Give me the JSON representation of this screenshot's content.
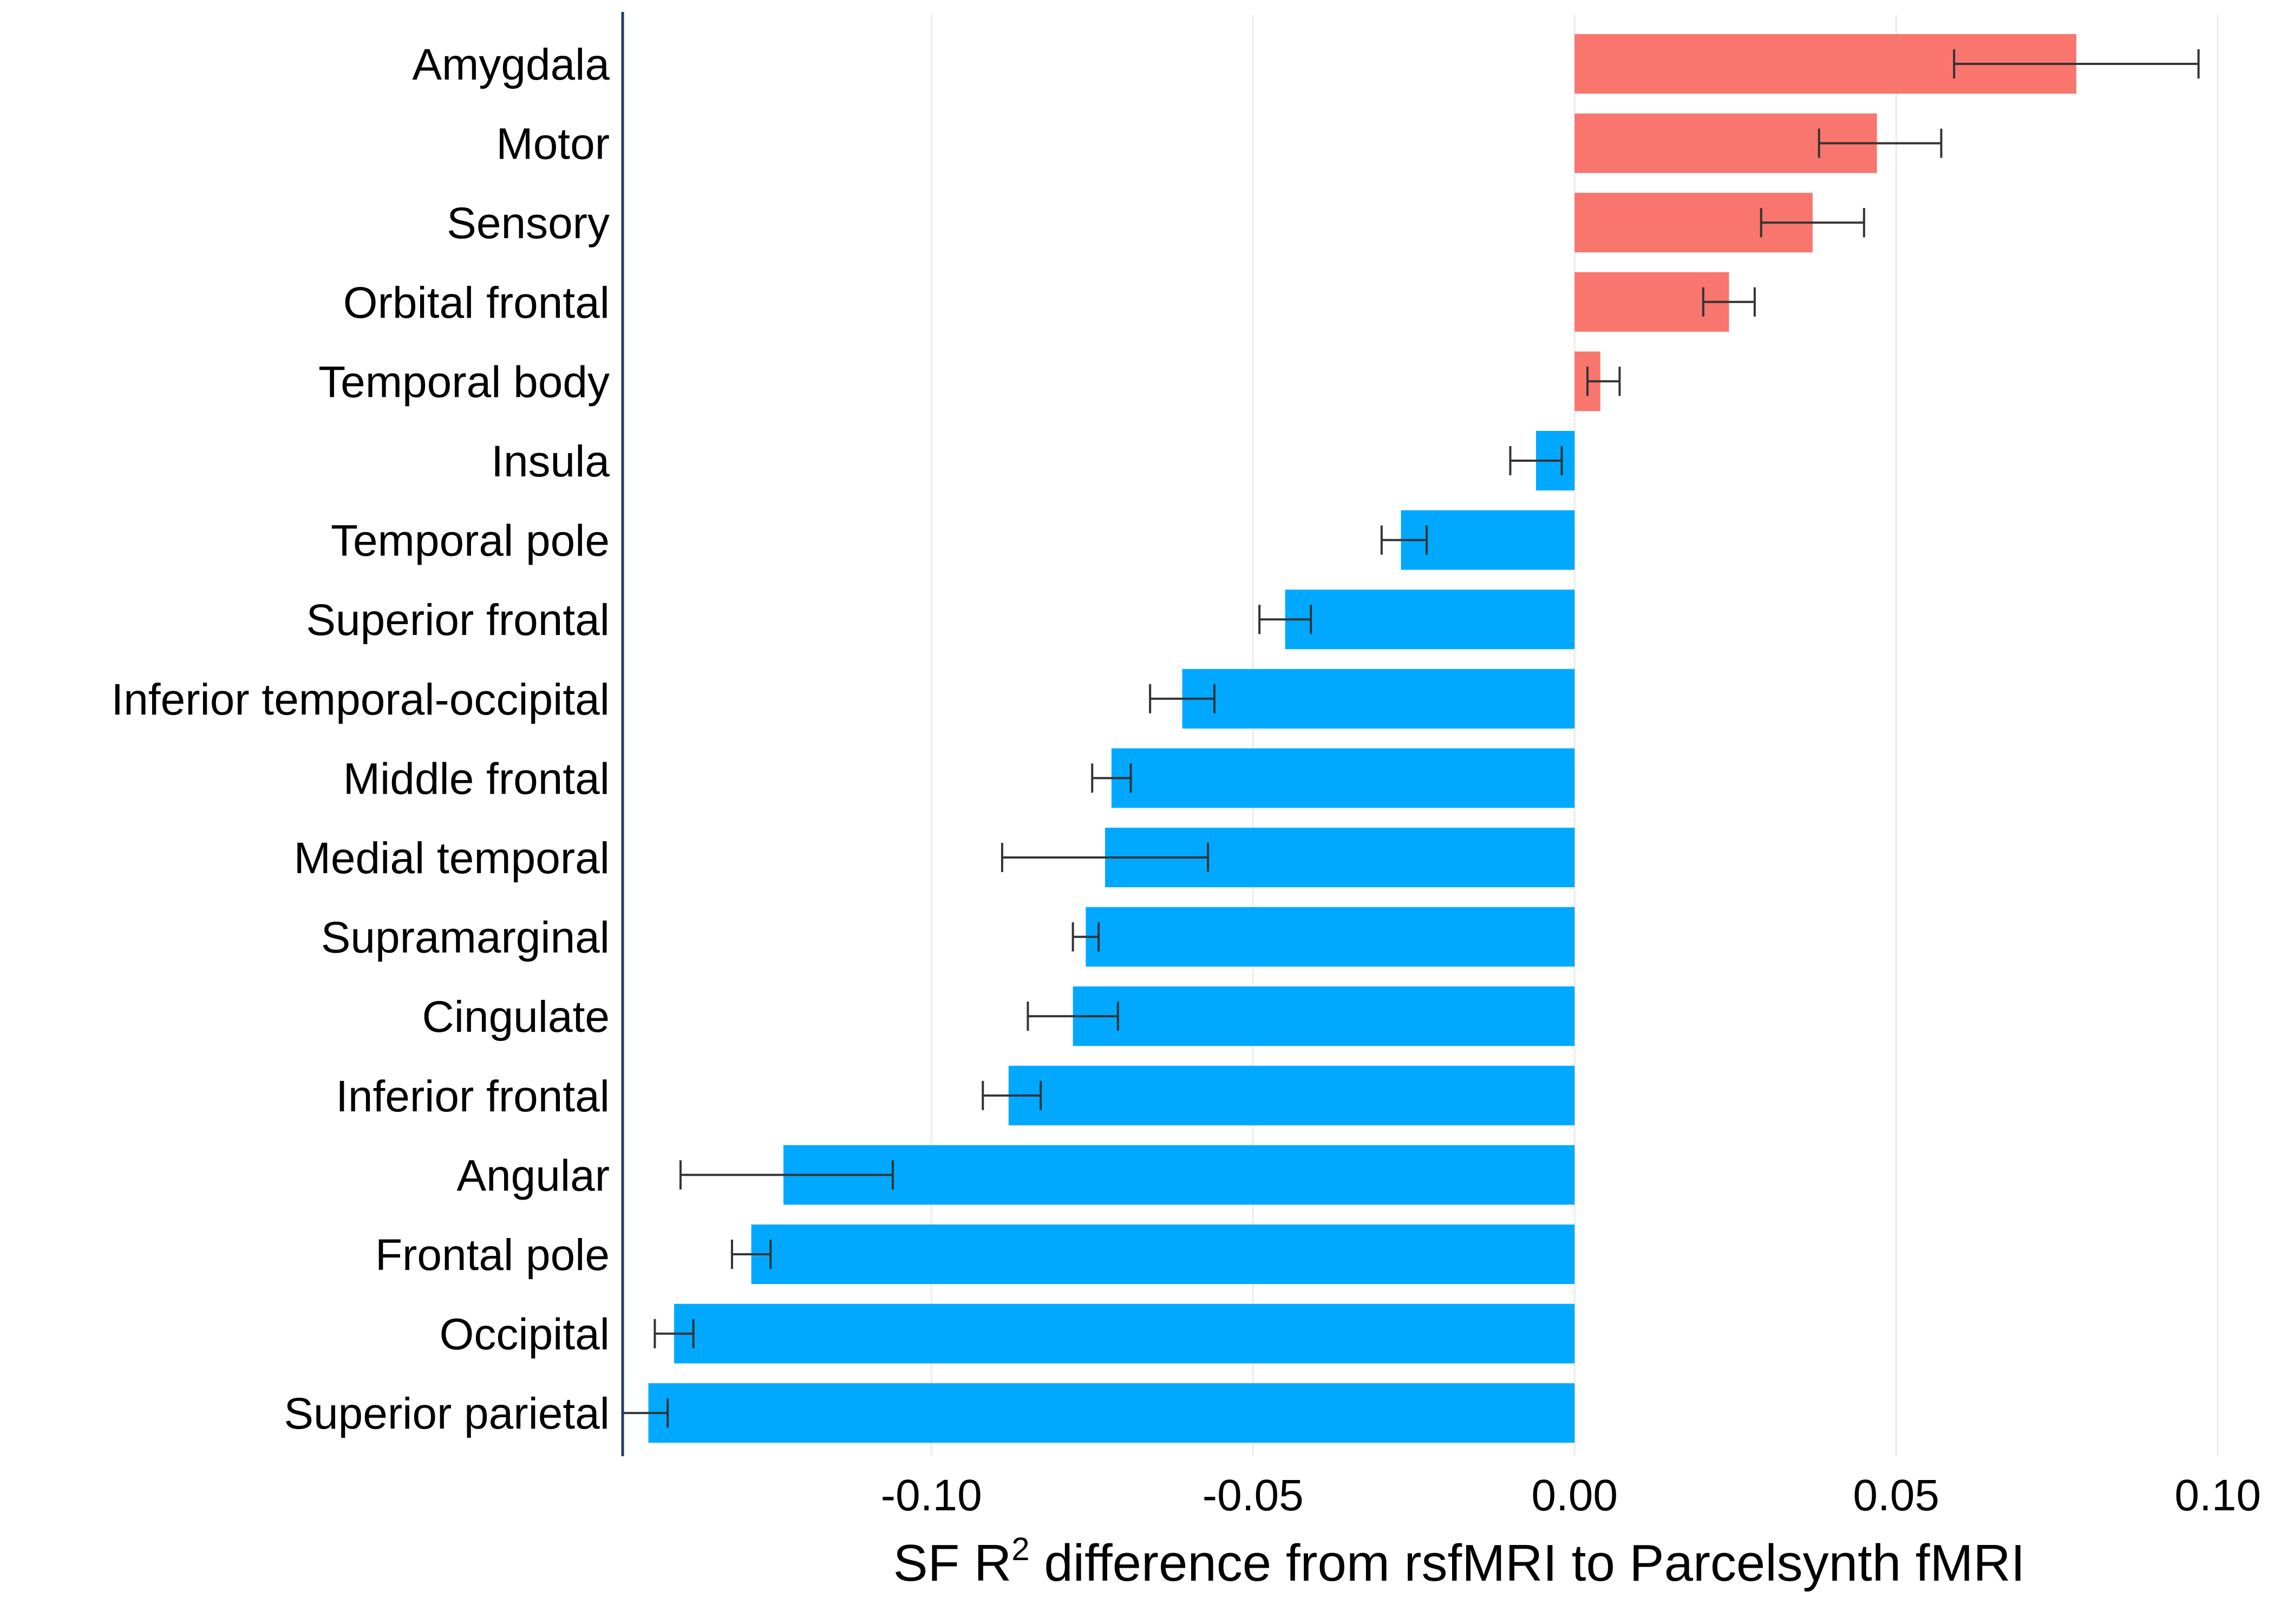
{
  "chart_data": {
    "type": "bar",
    "orientation": "horizontal",
    "categories": [
      "Amygdala",
      "Motor",
      "Sensory",
      "Orbital frontal",
      "Temporal body",
      "Insula",
      "Temporal pole",
      "Superior frontal",
      "Inferior temporal-occipital",
      "Middle frontal",
      "Medial temporal",
      "Supramarginal",
      "Cingulate",
      "Inferior frontal",
      "Angular",
      "Frontal pole",
      "Occipital",
      "Superior parietal"
    ],
    "values": [
      0.078,
      0.047,
      0.037,
      0.024,
      0.004,
      -0.006,
      -0.027,
      -0.045,
      -0.061,
      -0.072,
      -0.073,
      -0.076,
      -0.078,
      -0.088,
      -0.123,
      -0.128,
      -0.14,
      -0.144
    ],
    "error_low": [
      0.059,
      0.038,
      0.029,
      0.02,
      0.002,
      -0.01,
      -0.03,
      -0.049,
      -0.066,
      -0.075,
      -0.089,
      -0.078,
      -0.085,
      -0.092,
      -0.139,
      -0.131,
      -0.143,
      -0.148
    ],
    "error_high": [
      0.097,
      0.057,
      0.045,
      0.028,
      0.007,
      -0.002,
      -0.023,
      -0.041,
      -0.056,
      -0.069,
      -0.057,
      -0.074,
      -0.071,
      -0.083,
      -0.106,
      -0.125,
      -0.137,
      -0.141
    ],
    "positive_color": "#F8766D",
    "negative_color": "#00A9FF",
    "xlim": [
      -0.148,
      0.102
    ],
    "xticks": [
      -0.1,
      -0.05,
      0.0,
      0.05,
      0.1
    ],
    "xtick_labels": [
      "-0.10",
      "-0.05",
      "0.00",
      "0.05",
      "0.10"
    ],
    "xlabel_main": "SF R",
    "xlabel_sup": "2",
    "xlabel_rest": " difference from rsfMRI to Parcelsynth fMRI",
    "grid": "vertical",
    "legend": "none"
  }
}
